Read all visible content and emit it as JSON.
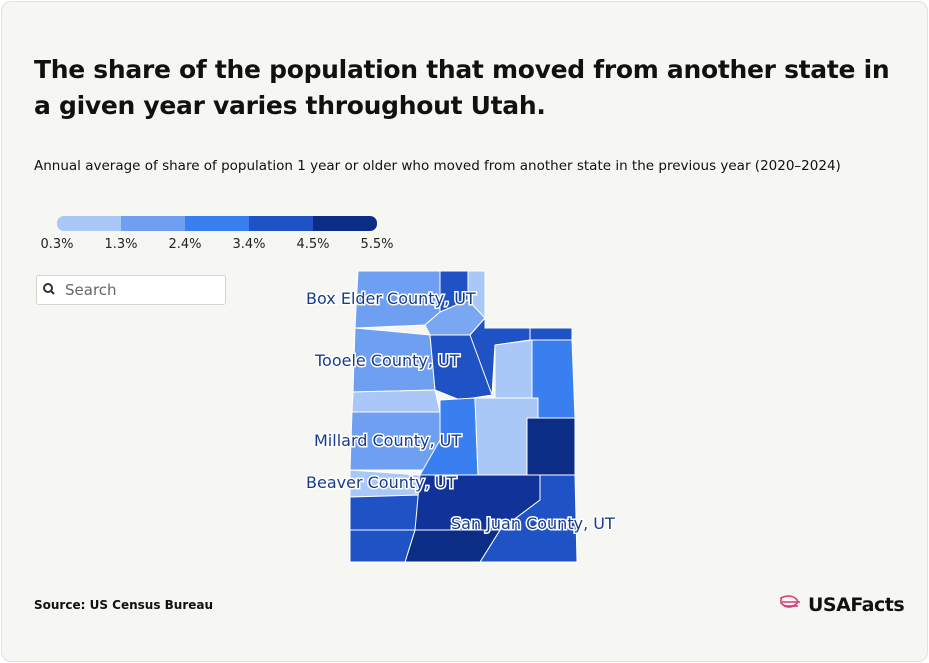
{
  "header": {
    "title": "The share of the population that moved from another state in a given year varies throughout Utah.",
    "subtitle": "Annual average of share of population 1 year or older who moved from another state in the previous year (2020–2024)"
  },
  "legend": {
    "colors": [
      "#a9c7f7",
      "#6f9ff0",
      "#3a7ff0",
      "#1f52c4",
      "#0c2d86"
    ],
    "ticks": [
      {
        "value": 0.3,
        "label": "0.3%"
      },
      {
        "value": 1.3,
        "label": "1.3%"
      },
      {
        "value": 2.4,
        "label": "2.4%"
      },
      {
        "value": 3.4,
        "label": "3.4%"
      },
      {
        "value": 4.5,
        "label": "4.5%"
      },
      {
        "value": 5.5,
        "label": "5.5%"
      }
    ]
  },
  "search": {
    "placeholder": "Search"
  },
  "map": {
    "labels": [
      "Box Elder County, UT",
      "Tooele County, UT",
      "Millard County, UT",
      "Beaver County, UT",
      "San Juan County, UT"
    ]
  },
  "footer": {
    "source": "Source: US Census Bureau",
    "logo": "USAFacts"
  }
}
